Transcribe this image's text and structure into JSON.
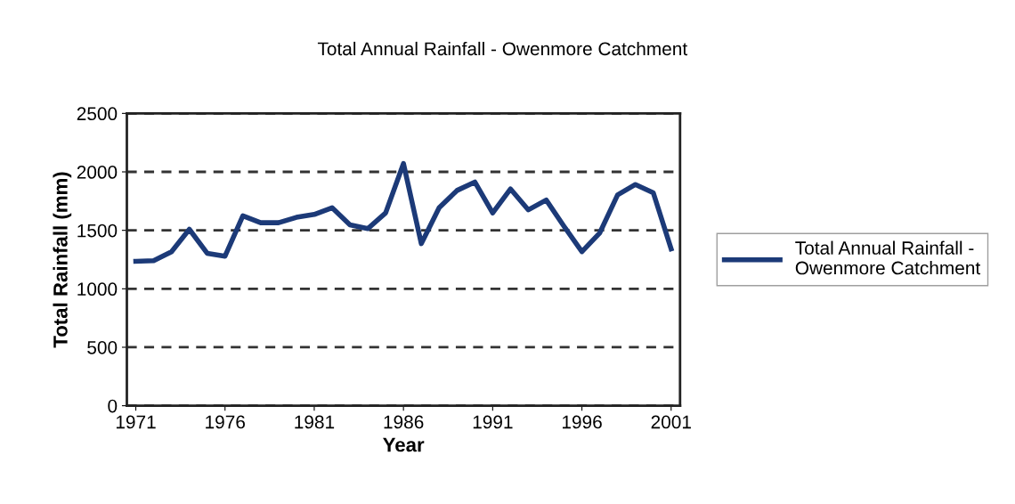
{
  "chart_data": {
    "type": "line",
    "title": "Total Annual Rainfall - Owenmore Catchment",
    "xlabel": "Year",
    "ylabel": "Total Rainfall (mm)",
    "x": [
      1971,
      1972,
      1973,
      1974,
      1975,
      1976,
      1977,
      1978,
      1979,
      1980,
      1981,
      1982,
      1983,
      1984,
      1985,
      1986,
      1987,
      1988,
      1989,
      1990,
      1991,
      1992,
      1993,
      1994,
      1995,
      1996,
      1997,
      1998,
      1999,
      2000,
      2001
    ],
    "series": [
      {
        "name": "Total Annual Rainfall -\nOwenmore Catchment",
        "color": "#1c3a78",
        "values": [
          1235,
          1240,
          1317,
          1509,
          1304,
          1279,
          1624,
          1565,
          1565,
          1611,
          1636,
          1693,
          1547,
          1514,
          1649,
          2071,
          1386,
          1693,
          1841,
          1913,
          1649,
          1854,
          1675,
          1759,
          1534,
          1317,
          1478,
          1803,
          1892,
          1821,
          1342
        ]
      }
    ],
    "xlim": [
      1970.5,
      2001.5
    ],
    "xticks": [
      1971,
      1976,
      1981,
      1986,
      1991,
      1996,
      2001
    ],
    "ylim": [
      0,
      2500
    ],
    "yticks": [
      0,
      500,
      1000,
      1500,
      2000,
      2500
    ],
    "grid": "y",
    "legend": "right",
    "marker": "none",
    "line_style": "solid"
  }
}
